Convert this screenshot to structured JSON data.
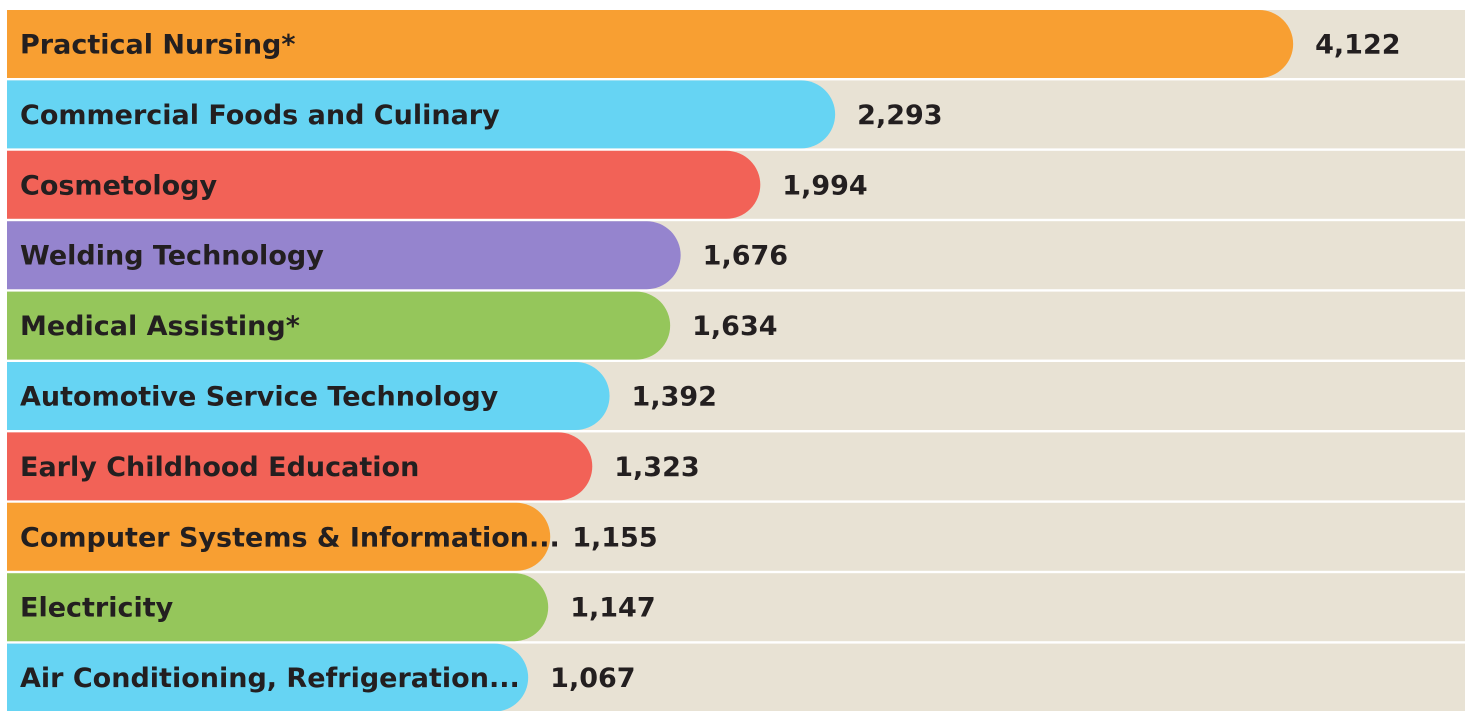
{
  "chart_data": {
    "type": "bar",
    "orientation": "horizontal",
    "categories": [
      "Practical Nursing*",
      "Commercial Foods and Culinary",
      "Cosmetology",
      "Welding Technology",
      "Medical Assisting*",
      "Automotive Service Technology",
      "Early Childhood Education",
      "Computer Systems & Information...",
      "Electricity",
      "Air Conditioning, Refrigeration..."
    ],
    "values": [
      4122,
      2293,
      1994,
      1676,
      1634,
      1392,
      1323,
      1155,
      1147,
      1067
    ],
    "value_labels": [
      "4,122",
      "2,293",
      "1,994",
      "1,676",
      "1,634",
      "1,392",
      "1,323",
      "1,155",
      "1,147",
      "1,067"
    ],
    "colors": [
      "#f89f32",
      "#66d4f3",
      "#f26257",
      "#9584ce",
      "#95c65b",
      "#66d4f3",
      "#f26257",
      "#f89f32",
      "#95c65b",
      "#66d4f3"
    ]
  }
}
